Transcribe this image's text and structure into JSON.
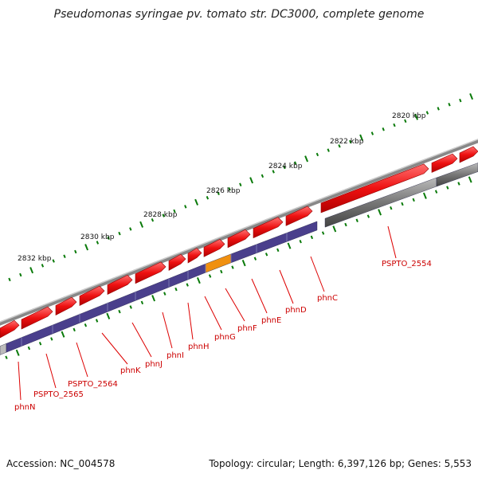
{
  "title": "Pseudomonas syringae pv. tomato str. DC3000, complete genome",
  "footer": {
    "accession": "Accession: NC_004578",
    "summary": "Topology: circular; Length: 6,397,126 bp; Genes: 5,553"
  },
  "tick_labels": [
    "2820 kbp",
    "2822 kbp",
    "2824 kbp",
    "2826 kbp",
    "2828 kbp",
    "2830 kbp",
    "2832 kbp"
  ],
  "gene_labels": [
    "PSPTO_2554",
    "phnC",
    "phnD",
    "phnE",
    "phnF",
    "phnG",
    "phnH",
    "phnI",
    "phnJ",
    "phnK",
    "PSPTO_2564",
    "PSPTO_2565",
    "phnN"
  ],
  "colors": {
    "forward_cds": "#ee1111",
    "gene_track": "#4a3f8c",
    "highlight_gene": "#f09010",
    "backbone": "#777777",
    "gc_dots": "#0a7a0a",
    "label_text": "#cc0000"
  }
}
